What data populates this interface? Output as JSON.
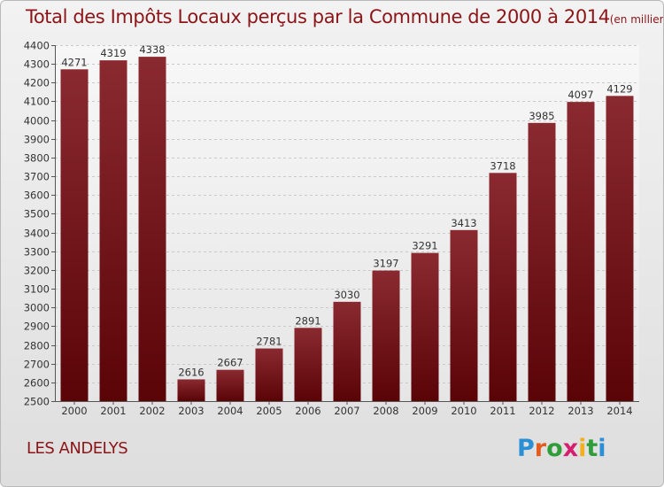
{
  "title": {
    "main": "Total des Impôts Locaux perçus par la Commune de 2000 à 2014",
    "unit": "(en milliers d'€)"
  },
  "commune": "LES ANDELYS",
  "logo": {
    "letters": [
      "P",
      "r",
      "o",
      "x",
      "i",
      "t",
      "i"
    ],
    "colors": [
      "#2b8fd6",
      "#e35b1e",
      "#2f9e3a",
      "#d61e6e",
      "#f2b01e",
      "#2f9e3a",
      "#2b8fd6"
    ]
  },
  "chart_data": {
    "type": "bar",
    "title": "Total des Impôts Locaux perçus par la Commune de 2000 à 2014",
    "xlabel": "",
    "ylabel": "",
    "categories": [
      "2000",
      "2001",
      "2002",
      "2003",
      "2004",
      "2005",
      "2006",
      "2007",
      "2008",
      "2009",
      "2010",
      "2011",
      "2012",
      "2013",
      "2014"
    ],
    "values": [
      4271,
      4319,
      4338,
      2616,
      2667,
      2781,
      2891,
      3030,
      3197,
      3291,
      3413,
      3718,
      3985,
      4097,
      4129
    ],
    "ylim": [
      2500,
      4400
    ],
    "yticks": [
      2500,
      2600,
      2700,
      2800,
      2900,
      3000,
      3100,
      3200,
      3300,
      3400,
      3500,
      3600,
      3700,
      3800,
      3900,
      4000,
      4100,
      4200,
      4300,
      4400
    ],
    "grid": true,
    "bar_color": "#7a1015"
  }
}
